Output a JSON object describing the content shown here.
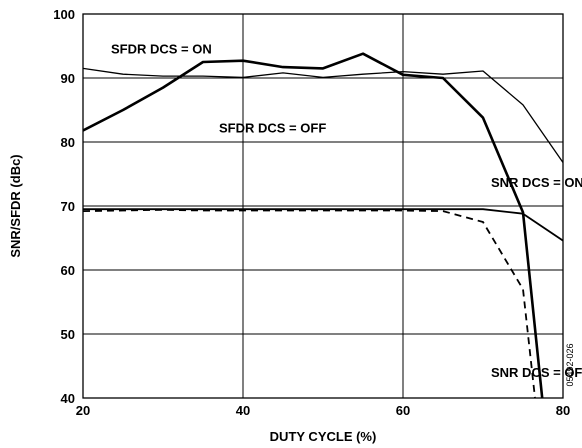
{
  "chart_data": {
    "type": "line",
    "title": "",
    "xlabel": "DUTY CYCLE (%)",
    "ylabel": "SNR/SFDR (dBc)",
    "xlim": [
      20,
      80
    ],
    "ylim": [
      40,
      100
    ],
    "xticks": [
      20,
      40,
      60,
      80
    ],
    "yticks": [
      40,
      50,
      60,
      70,
      80,
      90,
      100
    ],
    "grid": true,
    "figure_id": "05492-026",
    "series": [
      {
        "key": "sfdr_on",
        "style": "thin",
        "x": [
          20,
          25,
          30,
          35,
          40,
          45,
          50,
          55,
          60,
          65,
          70,
          75,
          80
        ],
        "y": [
          91.5,
          90.6,
          90.3,
          90.3,
          90.1,
          90.8,
          90.1,
          90.6,
          91.0,
          90.6,
          91.1,
          85.8,
          76.8
        ]
      },
      {
        "key": "sfdr_off",
        "style": "thick",
        "x": [
          20,
          25,
          30,
          35,
          40,
          45,
          50,
          55,
          60,
          65,
          70,
          75,
          77.4
        ],
        "y": [
          81.8,
          85.0,
          88.5,
          92.5,
          92.7,
          91.7,
          91.5,
          93.8,
          90.5,
          90.0,
          83.8,
          69.0,
          40.0
        ]
      },
      {
        "key": "snr_on",
        "style": "solid",
        "x": [
          20,
          25,
          30,
          35,
          40,
          45,
          50,
          55,
          60,
          65,
          70,
          75,
          80
        ],
        "y": [
          69.5,
          69.5,
          69.5,
          69.5,
          69.5,
          69.5,
          69.5,
          69.5,
          69.5,
          69.5,
          69.5,
          68.8,
          64.6
        ]
      },
      {
        "key": "snr_off",
        "style": "dashed",
        "x": [
          20,
          25,
          30,
          35,
          40,
          45,
          50,
          55,
          60,
          65,
          70,
          75,
          76.5
        ],
        "y": [
          69.2,
          69.3,
          69.4,
          69.3,
          69.3,
          69.3,
          69.3,
          69.3,
          69.3,
          69.2,
          67.5,
          57.0,
          40.0
        ]
      }
    ],
    "annotations": [
      {
        "text": "SFDR DCS = ON",
        "x": 23.5,
        "y": 93.8
      },
      {
        "text": "SFDR DCS = OFF",
        "x": 37.0,
        "y": 81.5
      },
      {
        "text": "SNR DCS = ON",
        "x": 71.0,
        "y": 73.0
      },
      {
        "text": "SNR DCS = OFF",
        "x": 71.0,
        "y": 43.3
      }
    ]
  }
}
